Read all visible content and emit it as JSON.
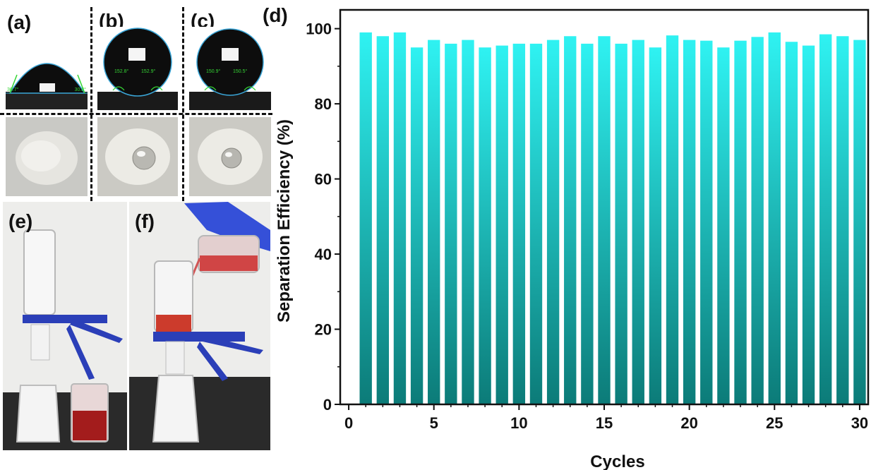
{
  "panels": {
    "a": "(a)",
    "b": "(b)",
    "c": "(c)",
    "d": "(d)",
    "e": "(e)",
    "f": "(f)"
  },
  "contact_angles": {
    "a_left": "30.7°",
    "a_right": "30.8°",
    "b_left": "152.8°",
    "b_right": "152.9°",
    "c_left": "150.9°",
    "c_right": "150.5°"
  },
  "colors": {
    "bar_top": "#2ff2f2",
    "bar_bottom": "#0c7b78",
    "axis": "#111111"
  },
  "chart_data": {
    "type": "bar",
    "title": "",
    "xlabel": "Cycles",
    "ylabel": "Separation Efficiency (%)",
    "x": [
      1,
      2,
      3,
      4,
      5,
      6,
      7,
      8,
      9,
      10,
      11,
      12,
      13,
      14,
      15,
      16,
      17,
      18,
      19,
      20,
      21,
      22,
      23,
      24,
      25,
      26,
      27,
      28,
      29,
      30
    ],
    "values": [
      99.0,
      98.0,
      99.0,
      95.0,
      97.0,
      96.0,
      97.0,
      95.0,
      95.5,
      96.0,
      96.0,
      97.0,
      98.0,
      96.0,
      98.0,
      96.0,
      97.0,
      95.0,
      98.2,
      97.0,
      96.8,
      95.0,
      96.8,
      97.8,
      99.0,
      96.5,
      95.5,
      98.5,
      98.0,
      97.0
    ],
    "xlim": [
      -0.5,
      30.5
    ],
    "ylim": [
      0,
      105
    ],
    "xticks": [
      0,
      5,
      10,
      15,
      20,
      25,
      30
    ],
    "yticks": [
      0,
      20,
      40,
      60,
      80,
      100
    ],
    "grid": false,
    "legend": "none"
  }
}
